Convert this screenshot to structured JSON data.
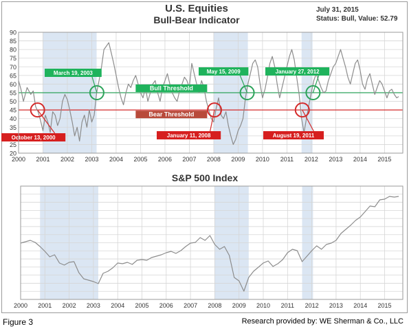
{
  "figure_caption": "Figure 3",
  "credit": "Research provided by: WE Sherman & Co., LLC",
  "colors": {
    "line": "#8c8c8c",
    "grid": "#d6d6d6",
    "shade": "#dbe6f3",
    "bull_line": "#2ca35a",
    "bear_line": "#d42a2a",
    "green_label": "#1fb35c",
    "red_label": "#d61f1f",
    "title": "#333333"
  },
  "chart_data": [
    {
      "type": "line",
      "title": "U.S. Equities",
      "subtitle": "Bull-Bear Indicator",
      "date_text": "July 31, 2015",
      "status_text": "Status: Bull, Value: 52.79",
      "xlim": [
        2000,
        2015.75
      ],
      "ylim": [
        20,
        90
      ],
      "x_ticks": [
        "2000",
        "2001",
        "2002",
        "2003",
        "2004",
        "2005",
        "2006",
        "2007",
        "2008",
        "2009",
        "2010",
        "2011",
        "2012",
        "2013",
        "2014",
        "2015"
      ],
      "y_ticks": [
        "20",
        "25",
        "30",
        "35",
        "40",
        "45",
        "50",
        "55",
        "60",
        "65",
        "70",
        "75",
        "80",
        "85",
        "90"
      ],
      "grid": true,
      "bull_threshold": 55,
      "bear_threshold": 45,
      "bull_threshold_label": "Bull Threshold",
      "bear_threshold_label": "Bear Threshold",
      "shaded_ranges": [
        [
          2001.0,
          2003.2
        ],
        [
          2008.0,
          2009.4
        ],
        [
          2011.6,
          2012.05
        ]
      ],
      "annotations": [
        {
          "text": "October 13, 2000",
          "x": 2000.78,
          "y": 45,
          "kind": "bear"
        },
        {
          "text": "March 19, 2003",
          "x": 2003.21,
          "y": 55,
          "kind": "bull"
        },
        {
          "text": "January 11, 2008",
          "x": 2008.03,
          "y": 45,
          "kind": "bear"
        },
        {
          "text": "May 15, 2009",
          "x": 2009.37,
          "y": 55,
          "kind": "bull"
        },
        {
          "text": "August 19, 2011",
          "x": 2011.63,
          "y": 45,
          "kind": "bear"
        },
        {
          "text": "January 27, 2012",
          "x": 2012.07,
          "y": 55,
          "kind": "bull"
        }
      ],
      "series": [
        {
          "x": [
            2000.0,
            2000.1,
            2000.2,
            2000.35,
            2000.5,
            2000.6,
            2000.7,
            2000.8,
            2000.9,
            2001.0,
            2001.1,
            2001.2,
            2001.3,
            2001.4,
            2001.5,
            2001.6,
            2001.7,
            2001.8,
            2001.9,
            2002.0,
            2002.1,
            2002.2,
            2002.3,
            2002.4,
            2002.5,
            2002.6,
            2002.7,
            2002.8,
            2002.9,
            2003.0,
            2003.1,
            2003.2,
            2003.3,
            2003.4,
            2003.5,
            2003.6,
            2003.7,
            2003.8,
            2003.9,
            2004.0,
            2004.1,
            2004.2,
            2004.3,
            2004.4,
            2004.5,
            2004.6,
            2004.7,
            2004.8,
            2004.9,
            2005.0,
            2005.1,
            2005.2,
            2005.3,
            2005.4,
            2005.5,
            2005.6,
            2005.7,
            2005.8,
            2005.9,
            2006.0,
            2006.1,
            2006.2,
            2006.3,
            2006.4,
            2006.5,
            2006.6,
            2006.7,
            2006.8,
            2006.9,
            2007.0,
            2007.1,
            2007.2,
            2007.3,
            2007.4,
            2007.5,
            2007.6,
            2007.7,
            2007.8,
            2007.9,
            2008.0,
            2008.1,
            2008.2,
            2008.3,
            2008.4,
            2008.5,
            2008.6,
            2008.7,
            2008.8,
            2008.9,
            2009.0,
            2009.1,
            2009.2,
            2009.3,
            2009.4,
            2009.5,
            2009.6,
            2009.7,
            2009.8,
            2009.9,
            2010.0,
            2010.1,
            2010.2,
            2010.3,
            2010.4,
            2010.5,
            2010.6,
            2010.7,
            2010.8,
            2010.9,
            2011.0,
            2011.1,
            2011.2,
            2011.3,
            2011.4,
            2011.5,
            2011.6,
            2011.7,
            2011.8,
            2011.9,
            2012.0,
            2012.1,
            2012.2,
            2012.3,
            2012.4,
            2012.5,
            2012.6,
            2012.7,
            2012.8,
            2012.9,
            2013.0,
            2013.1,
            2013.2,
            2013.3,
            2013.4,
            2013.5,
            2013.6,
            2013.7,
            2013.8,
            2013.9,
            2014.0,
            2014.1,
            2014.2,
            2014.3,
            2014.4,
            2014.5,
            2014.6,
            2014.7,
            2014.8,
            2014.9,
            2015.0,
            2015.1,
            2015.2,
            2015.3,
            2015.4,
            2015.5,
            2015.58
          ],
          "values": [
            62,
            57,
            50,
            58,
            54,
            56,
            47,
            44,
            39,
            33,
            42,
            38,
            32,
            44,
            42,
            36,
            40,
            50,
            54,
            51,
            45,
            38,
            30,
            35,
            27,
            38,
            42,
            35,
            45,
            38,
            42,
            55,
            62,
            70,
            80,
            82,
            84,
            78,
            72,
            65,
            58,
            52,
            48,
            55,
            60,
            58,
            62,
            65,
            60,
            55,
            52,
            58,
            50,
            55,
            60,
            62,
            55,
            50,
            58,
            62,
            66,
            60,
            55,
            52,
            50,
            56,
            60,
            64,
            62,
            58,
            72,
            66,
            60,
            55,
            62,
            58,
            50,
            45,
            40,
            38,
            46,
            52,
            42,
            40,
            44,
            36,
            30,
            25,
            28,
            33,
            36,
            40,
            52,
            60,
            66,
            72,
            74,
            70,
            60,
            52,
            57,
            64,
            72,
            76,
            70,
            60,
            52,
            58,
            64,
            70,
            76,
            80,
            74,
            64,
            54,
            40,
            32,
            40,
            48,
            55,
            62,
            66,
            62,
            58,
            55,
            56,
            62,
            66,
            70,
            72,
            76,
            80,
            75,
            70,
            64,
            60,
            66,
            72,
            74,
            68,
            60,
            57,
            63,
            66,
            60,
            54,
            58,
            62,
            60,
            56,
            52,
            56,
            57,
            54,
            52,
            52.79
          ]
        }
      ]
    },
    {
      "type": "line",
      "title": "S&P 500 Index",
      "xlim": [
        2000,
        2015.75
      ],
      "x_ticks": [
        "2000",
        "2001",
        "2002",
        "2003",
        "2004",
        "2005",
        "2006",
        "2007",
        "2008",
        "2009",
        "2010",
        "2011",
        "2012",
        "2013",
        "2014",
        "2015"
      ],
      "grid": true,
      "shaded_ranges": [
        [
          2000.8,
          2003.2
        ],
        [
          2008.0,
          2009.4
        ],
        [
          2011.6,
          2012.05
        ]
      ],
      "series": [
        {
          "x": [
            2000.0,
            2000.2,
            2000.4,
            2000.6,
            2000.8,
            2001.0,
            2001.2,
            2001.4,
            2001.6,
            2001.8,
            2002.0,
            2002.2,
            2002.4,
            2002.6,
            2002.8,
            2003.0,
            2003.2,
            2003.4,
            2003.6,
            2003.8,
            2004.0,
            2004.2,
            2004.4,
            2004.6,
            2004.8,
            2005.0,
            2005.2,
            2005.4,
            2005.6,
            2005.8,
            2006.0,
            2006.2,
            2006.4,
            2006.6,
            2006.8,
            2007.0,
            2007.2,
            2007.4,
            2007.6,
            2007.8,
            2008.0,
            2008.2,
            2008.4,
            2008.6,
            2008.8,
            2009.0,
            2009.2,
            2009.4,
            2009.6,
            2009.8,
            2010.0,
            2010.2,
            2010.4,
            2010.6,
            2010.8,
            2011.0,
            2011.2,
            2011.4,
            2011.6,
            2011.8,
            2012.0,
            2012.2,
            2012.4,
            2012.6,
            2012.8,
            2013.0,
            2013.2,
            2013.4,
            2013.6,
            2013.8,
            2014.0,
            2014.2,
            2014.4,
            2014.6,
            2014.8,
            2015.0,
            2015.2,
            2015.4,
            2015.58
          ],
          "values": [
            1420,
            1440,
            1460,
            1430,
            1370,
            1300,
            1220,
            1250,
            1130,
            1100,
            1140,
            1150,
            990,
            900,
            880,
            860,
            830,
            980,
            1010,
            1060,
            1130,
            1120,
            1140,
            1110,
            1170,
            1180,
            1170,
            1210,
            1230,
            1250,
            1280,
            1300,
            1270,
            1310,
            1370,
            1420,
            1430,
            1500,
            1460,
            1530,
            1400,
            1330,
            1370,
            1240,
            920,
            870,
            720,
            920,
            1010,
            1070,
            1130,
            1160,
            1080,
            1120,
            1180,
            1280,
            1330,
            1310,
            1150,
            1230,
            1310,
            1380,
            1330,
            1400,
            1420,
            1460,
            1560,
            1620,
            1680,
            1750,
            1800,
            1880,
            1960,
            1950,
            2050,
            2060,
            2100,
            2090,
            2100
          ]
        }
      ]
    }
  ]
}
